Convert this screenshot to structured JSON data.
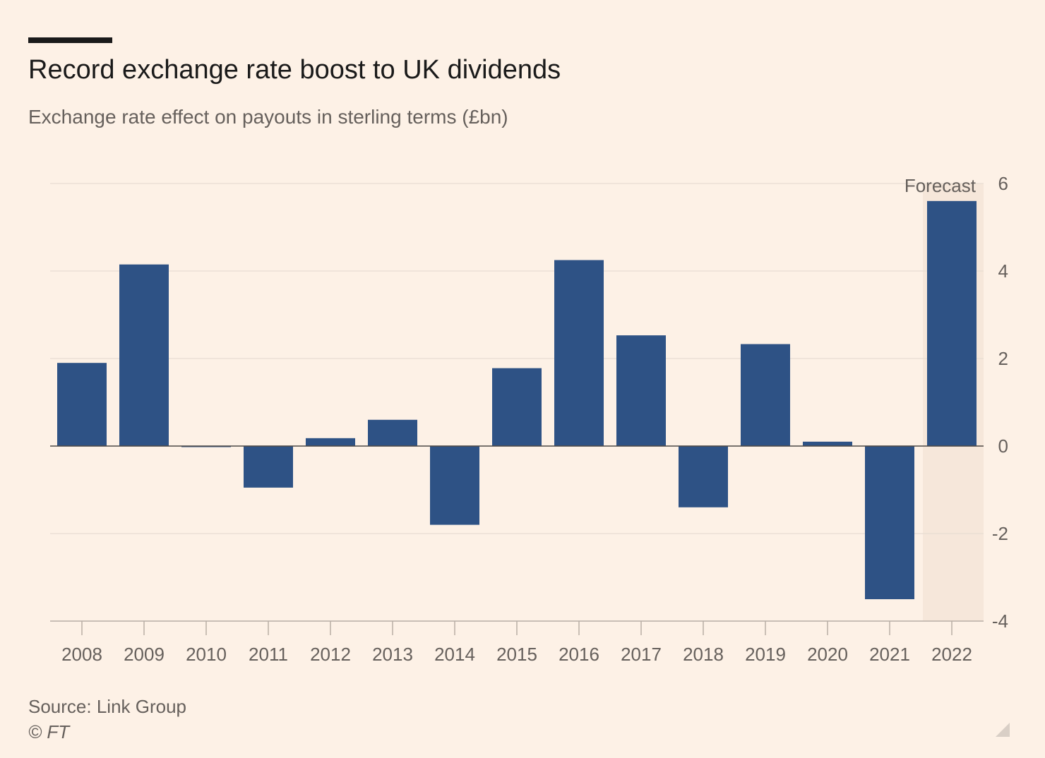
{
  "header": {
    "title": "Record exchange rate boost to UK dividends",
    "subtitle": "Exchange rate effect on payouts in sterling terms (£bn)"
  },
  "footer": {
    "source": "Source: Link Group",
    "copyright": "© FT"
  },
  "icons": {
    "resize": "resize-handle-icon"
  },
  "colors": {
    "background": "#fdf1e6",
    "bar": "#2e5285",
    "forecast_shade": "#f6e7da",
    "gridline": "#e8ddd2",
    "axis_text": "#66605c"
  },
  "chart_data": {
    "type": "bar",
    "categories": [
      "2008",
      "2009",
      "2010",
      "2011",
      "2012",
      "2013",
      "2014",
      "2015",
      "2016",
      "2017",
      "2018",
      "2019",
      "2020",
      "2021",
      "2022"
    ],
    "values": [
      1.9,
      4.15,
      -0.02,
      -0.95,
      0.18,
      0.6,
      -1.8,
      1.78,
      4.25,
      2.53,
      -1.4,
      2.33,
      0.1,
      -3.5,
      5.6
    ],
    "ylim": [
      -4,
      6
    ],
    "yticks": [
      -4,
      -2,
      0,
      2,
      4,
      6
    ],
    "ytick_labels": [
      "-4",
      "-2",
      "0",
      "2",
      "4",
      "6"
    ],
    "y_axis_side": "right",
    "grid": true,
    "forecast": {
      "label": "Forecast",
      "categories": [
        "2022"
      ]
    },
    "xlabel": "",
    "ylabel": ""
  }
}
